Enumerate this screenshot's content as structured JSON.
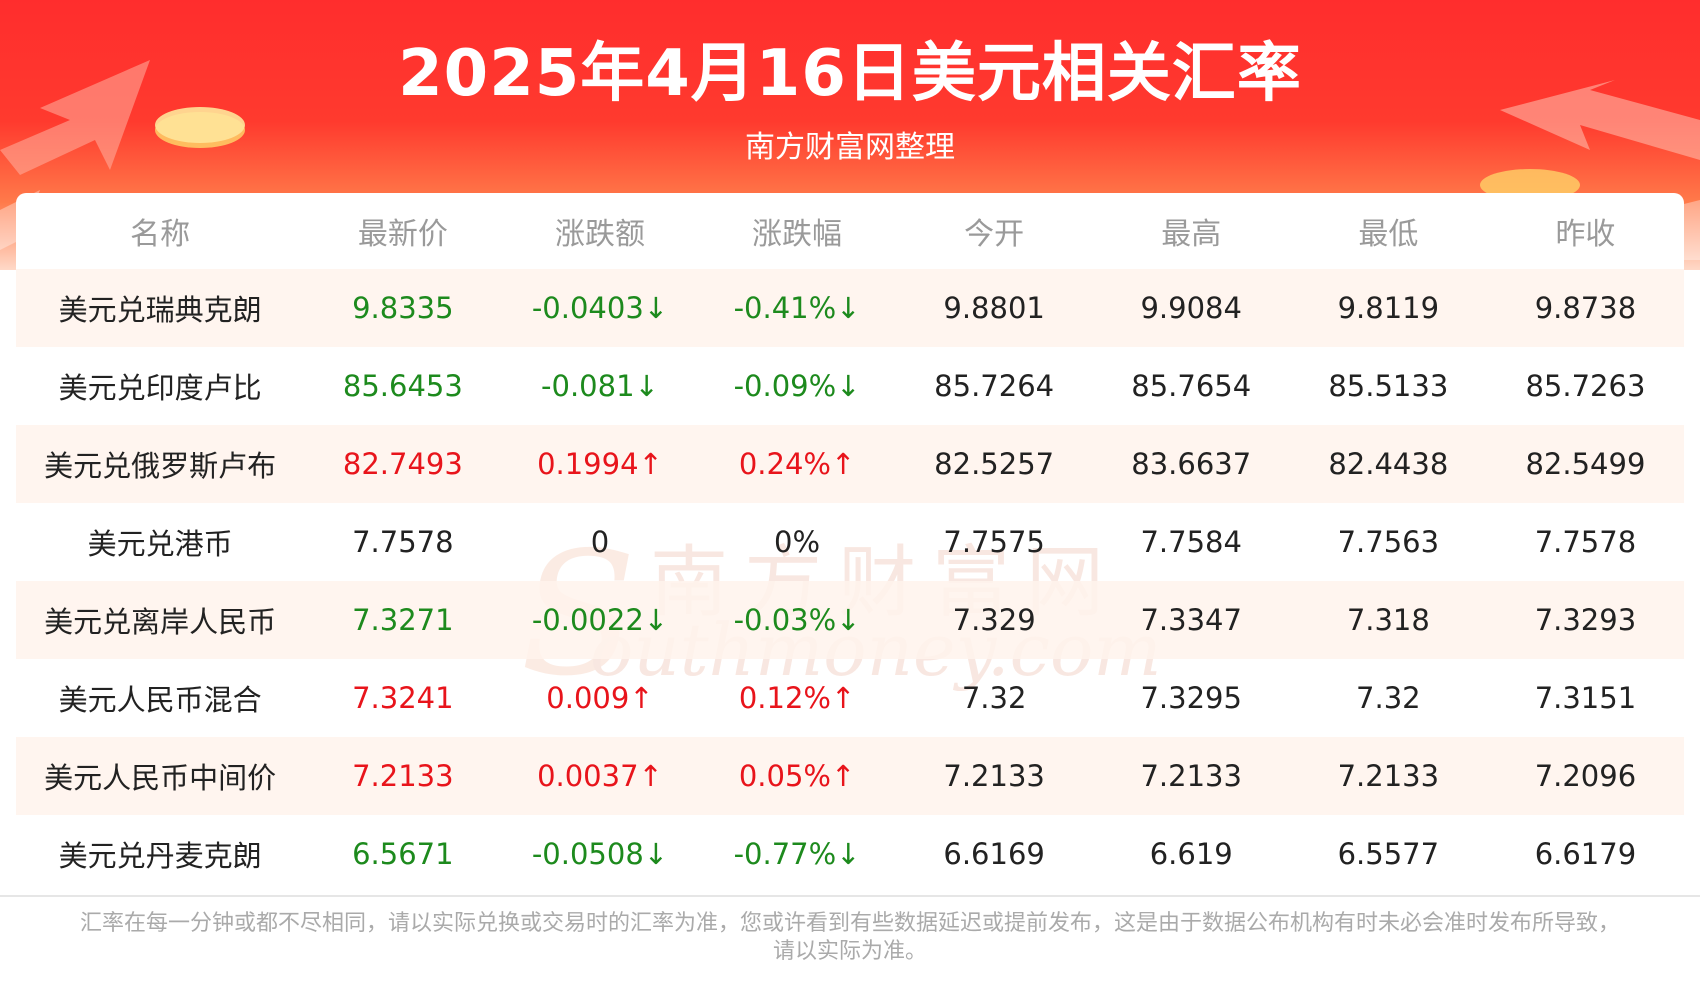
{
  "header": {
    "title": "2025年4月16日美元相关汇率",
    "subtitle": "南方财富网整理"
  },
  "colors": {
    "banner_red": "#ff2d2d",
    "up": "#e8141b",
    "down": "#1d8a1d",
    "neutral": "#222222"
  },
  "table": {
    "columns": [
      "名称",
      "最新价",
      "涨跌额",
      "涨跌幅",
      "今开",
      "最高",
      "最低",
      "昨收"
    ],
    "rows": [
      {
        "name": "美元兑瑞典克朗",
        "latest": "9.8335",
        "change": "-0.0403↓",
        "pct": "-0.41%↓",
        "open": "9.8801",
        "high": "9.9084",
        "low": "9.8119",
        "prev": "9.8738",
        "trend": "down"
      },
      {
        "name": "美元兑印度卢比",
        "latest": "85.6453",
        "change": "-0.081↓",
        "pct": "-0.09%↓",
        "open": "85.7264",
        "high": "85.7654",
        "low": "85.5133",
        "prev": "85.7263",
        "trend": "down"
      },
      {
        "name": "美元兑俄罗斯卢布",
        "latest": "82.7493",
        "change": "0.1994↑",
        "pct": "0.24%↑",
        "open": "82.5257",
        "high": "83.6637",
        "low": "82.4438",
        "prev": "82.5499",
        "trend": "up"
      },
      {
        "name": "美元兑港币",
        "latest": "7.7578",
        "change": "0",
        "pct": "0%",
        "open": "7.7575",
        "high": "7.7584",
        "low": "7.7563",
        "prev": "7.7578",
        "trend": "flat"
      },
      {
        "name": "美元兑离岸人民币",
        "latest": "7.3271",
        "change": "-0.0022↓",
        "pct": "-0.03%↓",
        "open": "7.329",
        "high": "7.3347",
        "low": "7.318",
        "prev": "7.3293",
        "trend": "down"
      },
      {
        "name": "美元人民币混合",
        "latest": "7.3241",
        "change": "0.009↑",
        "pct": "0.12%↑",
        "open": "7.32",
        "high": "7.3295",
        "low": "7.32",
        "prev": "7.3151",
        "trend": "up"
      },
      {
        "name": "美元人民币中间价",
        "latest": "7.2133",
        "change": "0.0037↑",
        "pct": "0.05%↑",
        "open": "7.2133",
        "high": "7.2133",
        "low": "7.2133",
        "prev": "7.2096",
        "trend": "up"
      },
      {
        "name": "美元兑丹麦克朗",
        "latest": "6.5671",
        "change": "-0.0508↓",
        "pct": "-0.77%↓",
        "open": "6.6169",
        "high": "6.619",
        "low": "6.5577",
        "prev": "6.6179",
        "trend": "down"
      }
    ]
  },
  "watermark": {
    "cn": "南方财富网",
    "en": "outhmoney.com",
    "s": "S"
  },
  "footer": {
    "line1": "汇率在每一分钟或都不尽相同，请以实际兑换或交易时的汇率为准，您或许看到有些数据延迟或提前发布，这是由于数据公布机构有时未必会准时发布所导致，",
    "line2": "请以实际为准。"
  }
}
